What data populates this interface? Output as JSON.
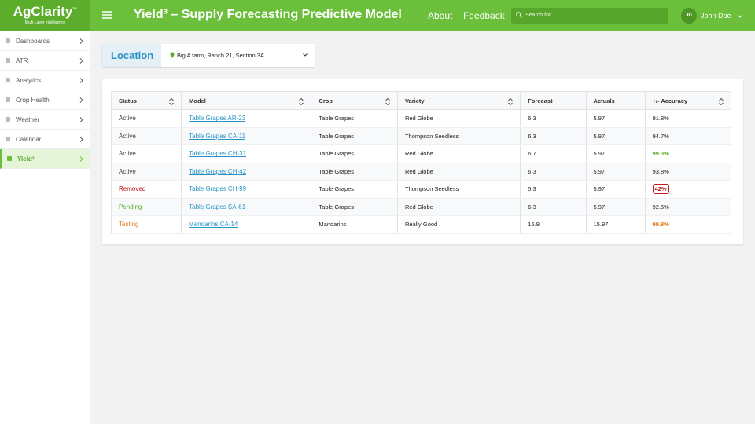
{
  "header": {
    "logo": "AgClarity",
    "logo_mark": "™",
    "tagline": "Multi-Layer Intelligence",
    "title": "Yield³ – Supply Forecasting Predictive Model",
    "nav": [
      "About",
      "Feedback"
    ],
    "search_placeholder": "Search for...",
    "user_initials": "JD",
    "user_name": "John Doe"
  },
  "sidebar": {
    "items": [
      "Dashboards",
      "ATR",
      "Analytics",
      "Crop Health",
      "Weather",
      "Calendar",
      "Yield³"
    ]
  },
  "location": {
    "label": "Location",
    "value": "Big A farm, Ranch 21, Section 3A"
  },
  "table": {
    "headers": [
      "Status",
      "Model",
      "Crop",
      "Variety",
      "Forecast",
      "Actuals",
      "+/- Accuracy"
    ],
    "rows": [
      [
        "Active",
        "Table Grapes AR-23",
        "Table Grapes",
        "Red Globe",
        "6.3",
        "5.97",
        "91.8%"
      ],
      [
        "Active",
        "Table Grapes CA-11",
        "Table Grapes",
        "Thompson Seedless",
        "6.3",
        "5.97",
        "94.7%"
      ],
      [
        "Active",
        "Table Grapes CH-31",
        "Table Grapes",
        "Red Globe",
        "6.7",
        "5.97",
        "99.3%"
      ],
      [
        "Active",
        "Table Grapes CH-42",
        "Table Grapes",
        "Red Globe",
        "6.3",
        "5.97",
        "93.8%"
      ],
      [
        "Removed",
        "Table Grapes CH-99",
        "Table Grapes",
        "Thompson Seedless",
        "5.3",
        "5.97",
        "42%"
      ],
      [
        "Pending",
        "Table Grapes SA-61",
        "Table Grapes",
        "Red Globe",
        "6.3",
        "5.97",
        "92.6%"
      ],
      [
        "Testing",
        "Mandarins CA-14",
        "Mandarins",
        "Really Good",
        "15.9",
        "15.97",
        "99.8%"
      ]
    ]
  }
}
